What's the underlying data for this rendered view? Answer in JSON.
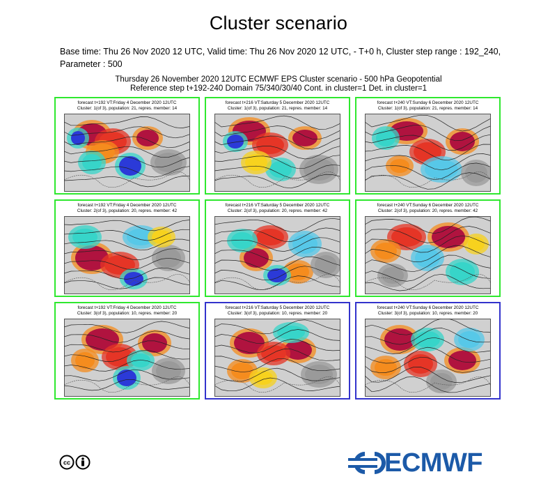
{
  "header": {
    "title": "Cluster scenario",
    "meta_line1": "Base time: Thu 26 Nov 2020 12 UTC, Valid time: Thu 26 Nov 2020 12 UTC, - T+0 h, Cluster step range : 192_240,",
    "meta_line2": "Parameter : 500"
  },
  "figure": {
    "title_line1": "Thursday 26 November 2020 12UTC ECMWF EPS Cluster scenario - 500 hPa Geopotential",
    "title_line2": "Reference step t+192-240 Domain 75/340/30/40 Cont. in cluster=1 Det. in cluster=1"
  },
  "panels": [
    {
      "line1": "forecast t+192 VT:Friday 4 December 2020 12UTC",
      "line2": "Cluster: 1(of 3), population: 21, repres. member: 14",
      "border": "green"
    },
    {
      "line1": "forecast t+216 VT:Saturday 5 December 2020 12UTC",
      "line2": "Cluster: 1(of 3), population: 21, repres. member: 14",
      "border": "green"
    },
    {
      "line1": "forecast t+240 VT:Sunday 6 December 2020 12UTC",
      "line2": "Cluster: 1(of 3), population: 21, repres. member: 14",
      "border": "green"
    },
    {
      "line1": "forecast t+192 VT:Friday 4 December 2020 12UTC",
      "line2": "Cluster: 2(of 3), population: 20, repres. member: 42",
      "border": "green"
    },
    {
      "line1": "forecast t+216 VT:Saturday 5 December 2020 12UTC",
      "line2": "Cluster: 2(of 3), population: 20, repres. member: 42",
      "border": "green"
    },
    {
      "line1": "forecast t+240 VT:Sunday 6 December 2020 12UTC",
      "line2": "Cluster: 2(of 3), population: 20, repres. member: 42",
      "border": "green"
    },
    {
      "line1": "forecast t+192 VT:Friday 4 December 2020 12UTC",
      "line2": "Cluster: 3(of 3), population: 10, repres. member: 20",
      "border": "green"
    },
    {
      "line1": "forecast t+216 VT:Saturday 5 December 2020 12UTC",
      "line2": "Cluster: 3(of 3), population: 10, repres. member: 20",
      "border": "blue"
    },
    {
      "line1": "forecast t+240 VT:Sunday 6 December 2020 12UTC",
      "line2": "Cluster: 3(of 3), population: 10, repres. member: 20",
      "border": "blue"
    }
  ],
  "logo": {
    "text": "ECMWF",
    "color": "#1c5aa8"
  },
  "license_icon": "creative-commons-by-icon"
}
